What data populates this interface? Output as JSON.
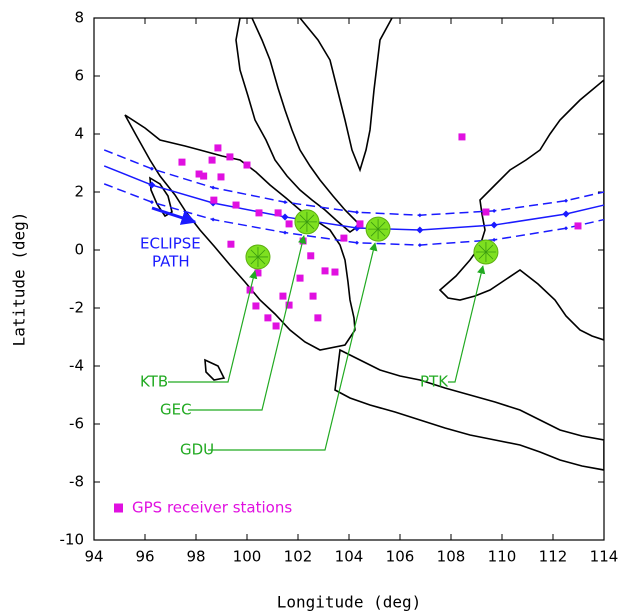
{
  "chart_data": {
    "type": "scatter",
    "xlabel": "Longitude (deg)",
    "ylabel": "Latitude (deg)",
    "xlim": [
      94,
      114
    ],
    "ylim": [
      -10,
      8
    ],
    "xticks": [
      94,
      96,
      98,
      100,
      102,
      104,
      106,
      108,
      110,
      112,
      114
    ],
    "yticks": [
      -10,
      -8,
      -6,
      -4,
      -2,
      0,
      2,
      4,
      6,
      8
    ],
    "series": [
      {
        "name": "GPS receiver stations",
        "color": "#e010e0",
        "x": [
          97.45,
          98.12,
          98.63,
          98.86,
          99.33,
          100.0,
          98.3,
          98.98,
          98.7,
          99.57,
          100.47,
          101.22,
          101.65,
          99.37,
          102.2,
          102.5,
          103.06,
          102.08,
          102.59,
          102.78,
          101.41,
          101.65,
          100.43,
          100.12,
          100.35,
          100.82,
          101.14,
          103.45,
          103.8,
          104.43,
          108.43,
          109.37,
          112.98,
          109.3
        ],
        "y": [
          3.03,
          2.62,
          3.1,
          3.52,
          3.21,
          2.93,
          2.55,
          2.52,
          1.72,
          1.55,
          1.28,
          1.28,
          0.9,
          0.2,
          0.31,
          -0.2,
          -0.72,
          -0.97,
          -1.59,
          -2.34,
          -1.59,
          -1.9,
          -0.79,
          -1.38,
          -1.93,
          -2.34,
          -2.62,
          -0.76,
          0.41,
          0.9,
          3.9,
          1.31,
          0.83,
          -0.07
        ]
      }
    ],
    "eclipse_path": {
      "label": [
        "ECLIPSE",
        "PATH"
      ],
      "color": "#1a1aff",
      "lines": [
        {
          "style": "dashed",
          "x": [
            94.4,
            96.27,
            98.67,
            101.49,
            104.31,
            106.78,
            109.69,
            112.51,
            114
          ],
          "y": [
            3.45,
            2.8,
            2.15,
            1.65,
            1.3,
            1.2,
            1.35,
            1.7,
            2.0
          ]
        },
        {
          "style": "solid",
          "x": [
            94.4,
            96.27,
            98.67,
            101.49,
            104.31,
            106.78,
            109.69,
            112.51,
            114
          ],
          "y": [
            2.9,
            2.24,
            1.62,
            1.14,
            0.76,
            0.69,
            0.86,
            1.24,
            1.55
          ]
        },
        {
          "style": "dashed",
          "x": [
            94.4,
            96.27,
            98.67,
            101.49,
            104.31,
            106.78,
            109.69,
            112.51,
            114
          ],
          "y": [
            2.28,
            1.65,
            1.05,
            0.6,
            0.25,
            0.17,
            0.35,
            0.75,
            1.05
          ]
        }
      ]
    },
    "stations_color": "#7ee020",
    "label_color": "#22aa22",
    "stations": [
      {
        "name": "KTB",
        "x": 100.43,
        "y": -0.24
      },
      {
        "name": "GEC",
        "x": 102.35,
        "y": 0.97
      },
      {
        "name": "GDU",
        "x": 105.14,
        "y": 0.72
      },
      {
        "name": "PTK",
        "x": 109.37,
        "y": -0.07
      }
    ]
  }
}
